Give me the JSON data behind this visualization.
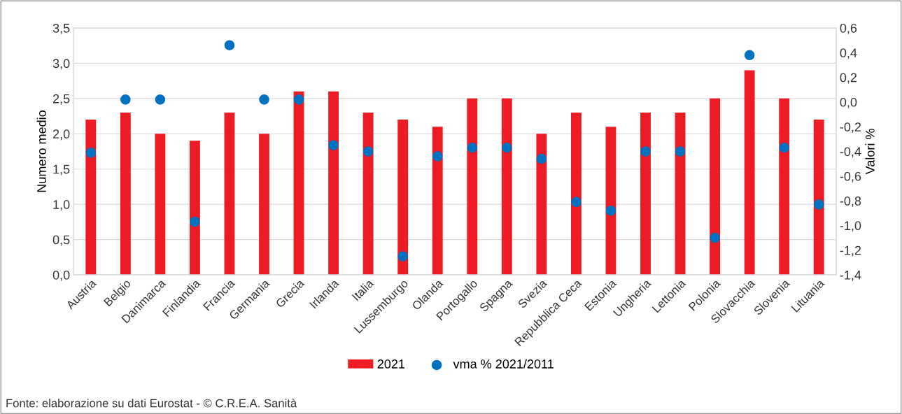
{
  "chart_data": {
    "type": "bar",
    "categories": [
      "Austria",
      "Belgio",
      "Danimarca",
      "Finlandia",
      "Francia",
      "Germania",
      "Grecia",
      "Irlanda",
      "Italia",
      "Lussemburgo",
      "Olanda",
      "Portogallo",
      "Spagna",
      "Svezia",
      "Repubblica Ceca",
      "Estonia",
      "Ungheria",
      "Lettonia",
      "Polonia",
      "Slovacchia",
      "Slovenia",
      "Lituania"
    ],
    "series": [
      {
        "name": "2021",
        "color": "#ed1c24",
        "values": [
          2.2,
          2.3,
          2.0,
          1.9,
          2.3,
          2.0,
          2.6,
          2.6,
          2.3,
          2.2,
          2.1,
          2.5,
          2.5,
          2.0,
          2.3,
          2.1,
          2.3,
          2.3,
          2.5,
          2.9,
          2.5,
          2.2
        ]
      },
      {
        "name": "vma % 2021/2011",
        "type": "scatter",
        "axis": "y2",
        "color": "#0070c0",
        "values": [
          -0.41,
          0.02,
          0.02,
          -0.97,
          0.46,
          0.02,
          0.02,
          -0.35,
          -0.4,
          -1.25,
          -0.44,
          -0.37,
          -0.37,
          -0.46,
          -0.81,
          -0.88,
          -0.4,
          -0.4,
          -1.1,
          0.38,
          -0.37,
          -0.83
        ]
      }
    ],
    "ylabel": "Numero medio",
    "y2label": "Valori %",
    "ylim": [
      0,
      3.5
    ],
    "yticks": [
      {
        "value": 0,
        "label": "0,0"
      },
      {
        "value": 0.5,
        "label": "0,5"
      },
      {
        "value": 1,
        "label": "1,0"
      },
      {
        "value": 1.5,
        "label": "1,5"
      },
      {
        "value": 2,
        "label": "2,0"
      },
      {
        "value": 2.5,
        "label": "2,5"
      },
      {
        "value": 3,
        "label": "3,0"
      },
      {
        "value": 3.5,
        "label": "3,5"
      }
    ],
    "y2lim": [
      -1.4,
      0.6
    ],
    "y2ticks": [
      {
        "value": -1.4,
        "label": "-1,4"
      },
      {
        "value": -1.2,
        "label": "-1,2"
      },
      {
        "value": -1.0,
        "label": "-1,0"
      },
      {
        "value": -0.8,
        "label": "-0,8"
      },
      {
        "value": -0.6,
        "label": "-0,6"
      },
      {
        "value": -0.4,
        "label": "-0,4"
      },
      {
        "value": -0.2,
        "label": "-0,2"
      },
      {
        "value": 0,
        "label": "0,0"
      },
      {
        "value": 0.2,
        "label": "0,2"
      },
      {
        "value": 0.4,
        "label": "0,4"
      },
      {
        "value": 0.6,
        "label": "0,6"
      }
    ],
    "grid": "y",
    "legend": "bottom",
    "marker": "circle",
    "annotations": [
      "Fonte: elaborazione su dati Eurostat - © C.R.E.A. Sanità"
    ]
  }
}
